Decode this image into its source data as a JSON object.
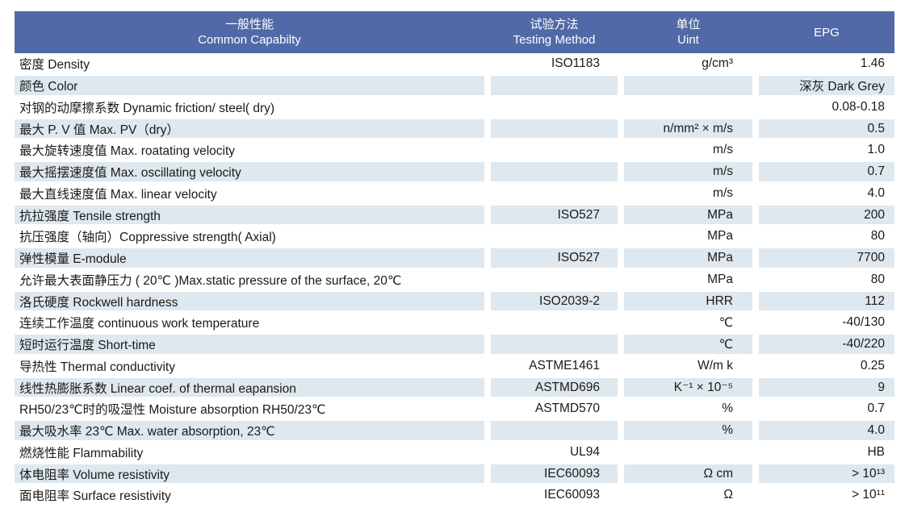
{
  "colors": {
    "header_bg": "#5169a7",
    "header_text": "#ffffff",
    "stripe_bg": "#dee8ee",
    "text": "#1a1a1a"
  },
  "table": {
    "columns": [
      {
        "line1": "一般性能",
        "line2": "Common Capabilty"
      },
      {
        "line1": "试验方法",
        "line2": "Testing Method"
      },
      {
        "line1": "单位",
        "line2": "Uint"
      },
      {
        "line1": "EPG",
        "line2": ""
      }
    ],
    "rows": [
      {
        "property": "密度 Density",
        "method": "ISO1183",
        "unit": "g/cm³",
        "value": "1.46"
      },
      {
        "property": "颜色 Color",
        "method": "",
        "unit": "",
        "value": "深灰 Dark Grey"
      },
      {
        "property": "对钢的动摩擦系数 Dynamic friction/ steel( dry)",
        "method": "",
        "unit": "",
        "value": "0.08-0.18"
      },
      {
        "property": "最大 P. V 值 Max. PV（dry）",
        "method": "",
        "unit": "n/mm² × m/s",
        "value": "0.5"
      },
      {
        "property": "最大旋转速度值 Max. roatating velocity",
        "method": "",
        "unit": "m/s",
        "value": "1.0"
      },
      {
        "property": "最大摇摆速度值 Max. oscillating velocity",
        "method": "",
        "unit": "m/s",
        "value": "0.7"
      },
      {
        "property": "最大直线速度值 Max. linear velocity",
        "method": "",
        "unit": "m/s",
        "value": "4.0"
      },
      {
        "property": "抗拉强度 Tensile strength",
        "method": "ISO527",
        "unit": "MPa",
        "value": "200"
      },
      {
        "property": "抗压强度（轴向）Coppressive strength( Axial)",
        "method": "",
        "unit": "MPa",
        "value": "80"
      },
      {
        "property": "弹性模量 E-module",
        "method": "ISO527",
        "unit": "MPa",
        "value": "7700"
      },
      {
        "property": "允许最大表面静压力 ( 20℃ )Max.static pressure of the surface, 20℃",
        "method": "",
        "unit": "MPa",
        "value": "80"
      },
      {
        "property": "洛氏硬度 Rockwell hardness",
        "method": "ISO2039-2",
        "unit": "HRR",
        "value": "112"
      },
      {
        "property": "连续工作温度 continuous work temperature",
        "method": "",
        "unit": "℃",
        "value": "-40/130"
      },
      {
        "property": "短时运行温度 Short-time",
        "method": "",
        "unit": "℃",
        "value": "-40/220"
      },
      {
        "property": "导热性 Thermal conductivity",
        "method": "ASTME1461",
        "unit": "W/m k",
        "value": "0.25"
      },
      {
        "property": "线性热膨胀系数 Linear coef. of thermal eapansion",
        "method": "ASTMD696",
        "unit": "K⁻¹ × 10⁻⁵",
        "value": "9"
      },
      {
        "property": "RH50/23℃时的吸湿性 Moisture absorption RH50/23℃",
        "method": "ASTMD570",
        "unit": "%",
        "value": "0.7"
      },
      {
        "property": "最大吸水率 23℃ Max. water absorption, 23℃",
        "method": "",
        "unit": "%",
        "value": "4.0"
      },
      {
        "property": "燃烧性能 Flammability",
        "method": "UL94",
        "unit": "",
        "value": "HB"
      },
      {
        "property": "体电阻率 Volume resistivity",
        "method": "IEC60093",
        "unit": "Ω cm",
        "value": "> 10¹³"
      },
      {
        "property": "面电阻率 Surface resistivity",
        "method": "IEC60093",
        "unit": "Ω",
        "value": "> 10¹¹"
      }
    ]
  }
}
